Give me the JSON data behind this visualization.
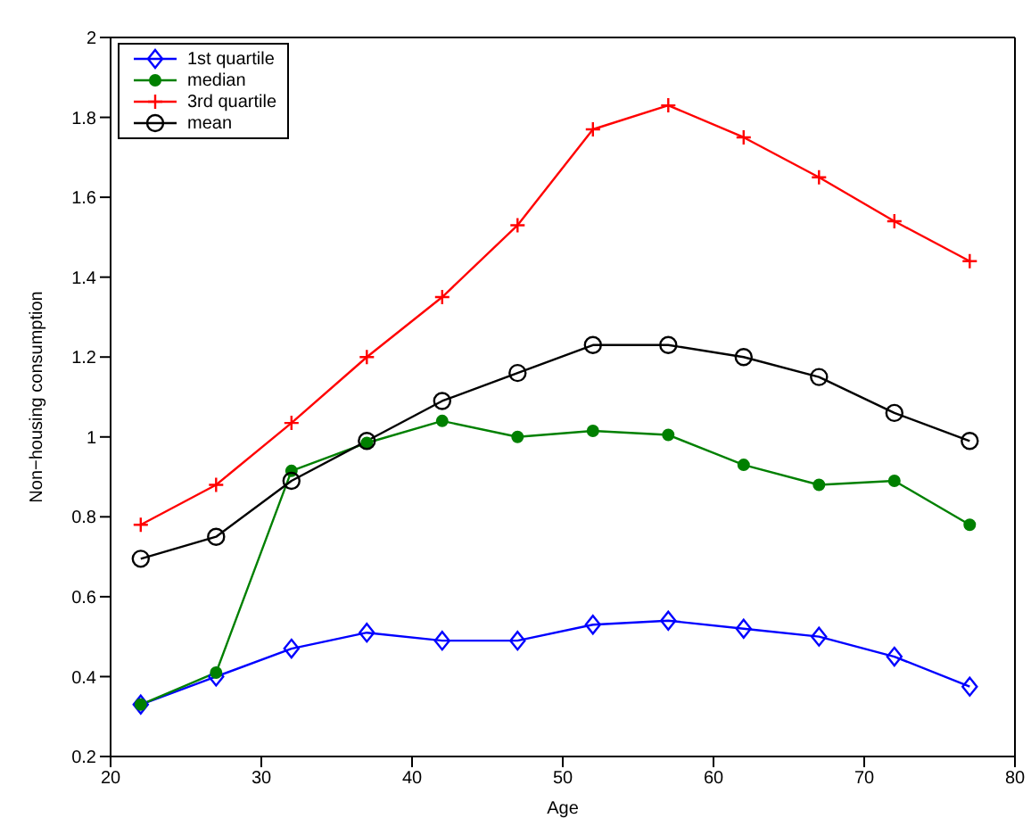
{
  "chart_data": {
    "type": "line",
    "xlabel": "Age",
    "ylabel": "Non−housing consumption",
    "x": [
      22,
      27,
      32,
      37,
      42,
      47,
      52,
      57,
      62,
      67,
      72,
      77
    ],
    "xlim": [
      20,
      80
    ],
    "xticks": [
      20,
      30,
      40,
      50,
      60,
      70,
      80
    ],
    "ylim": [
      0.2,
      2
    ],
    "yticks": [
      0.2,
      0.4,
      0.6,
      0.8,
      1,
      1.2,
      1.4,
      1.6,
      1.8,
      2
    ],
    "grid": false,
    "legend": "top left",
    "series": [
      {
        "name": "1st quartile",
        "color": "#0000ff",
        "marker": "diamond",
        "values": [
          0.33,
          0.4,
          0.47,
          0.51,
          0.49,
          0.49,
          0.53,
          0.54,
          0.52,
          0.5,
          0.45,
          0.375
        ]
      },
      {
        "name": "median",
        "color": "#008000",
        "marker": "circle",
        "values": [
          0.33,
          0.41,
          0.915,
          0.985,
          1.04,
          1.0,
          1.015,
          1.005,
          0.93,
          0.88,
          0.89,
          0.78
        ]
      },
      {
        "name": "3rd quartile",
        "color": "#ff0000",
        "marker": "cross",
        "values": [
          0.78,
          0.88,
          1.035,
          1.2,
          1.35,
          1.53,
          1.77,
          1.83,
          1.75,
          1.65,
          1.54,
          1.44
        ]
      },
      {
        "name": "mean",
        "color": "#000000",
        "marker": "circle_open",
        "values": [
          0.695,
          0.75,
          0.89,
          0.99,
          1.09,
          1.16,
          1.23,
          1.23,
          1.2,
          1.15,
          1.06,
          0.99
        ]
      }
    ]
  }
}
